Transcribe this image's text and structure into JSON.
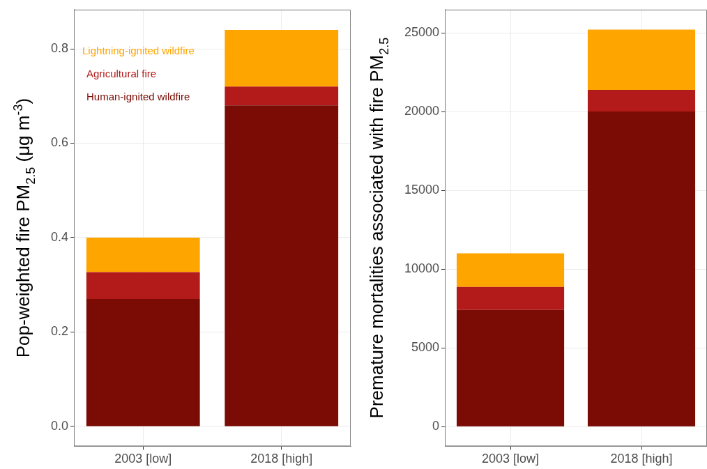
{
  "chart_data": [
    {
      "type": "bar",
      "ylabel": "Pop-weighted fire PM$_{2.5}$ (μg m$^{-3}$)",
      "categories": [
        "2003 [low]",
        "2018 [high]"
      ],
      "stacked": true,
      "series": [
        {
          "name": "Human-ignited wildfire",
          "color": "#7a0b05",
          "values": [
            0.27,
            0.68
          ]
        },
        {
          "name": "Agricultural fire",
          "color": "#b31a1a",
          "values": [
            0.057,
            0.04
          ]
        },
        {
          "name": "Lightning-ignited wildfire",
          "color": "#ffa500",
          "values": [
            0.073,
            0.12
          ]
        }
      ],
      "ylim": [
        -0.042,
        0.883
      ],
      "yticks": [
        {
          "value": 0,
          "label": "0.0"
        },
        0.2,
        0.4,
        0.6,
        0.8
      ],
      "grid": true,
      "legend": "top left"
    },
    {
      "type": "bar",
      "ylabel": "Premature mortalities associated with fire PM$_{2.5}$",
      "categories": [
        "2003 [low]",
        "2018 [high]"
      ],
      "stacked": true,
      "series": [
        {
          "color": "#7a0b05",
          "values": [
            7400,
            20000
          ]
        },
        {
          "color": "#b31a1a",
          "values": [
            1470,
            1370
          ]
        },
        {
          "color": "#ffa500",
          "values": [
            2130,
            3830
          ]
        }
      ],
      "ylim": [
        -1250,
        26470
      ],
      "yticks": [
        0,
        5000,
        10000,
        15000,
        20000,
        25000
      ],
      "grid": true
    }
  ]
}
